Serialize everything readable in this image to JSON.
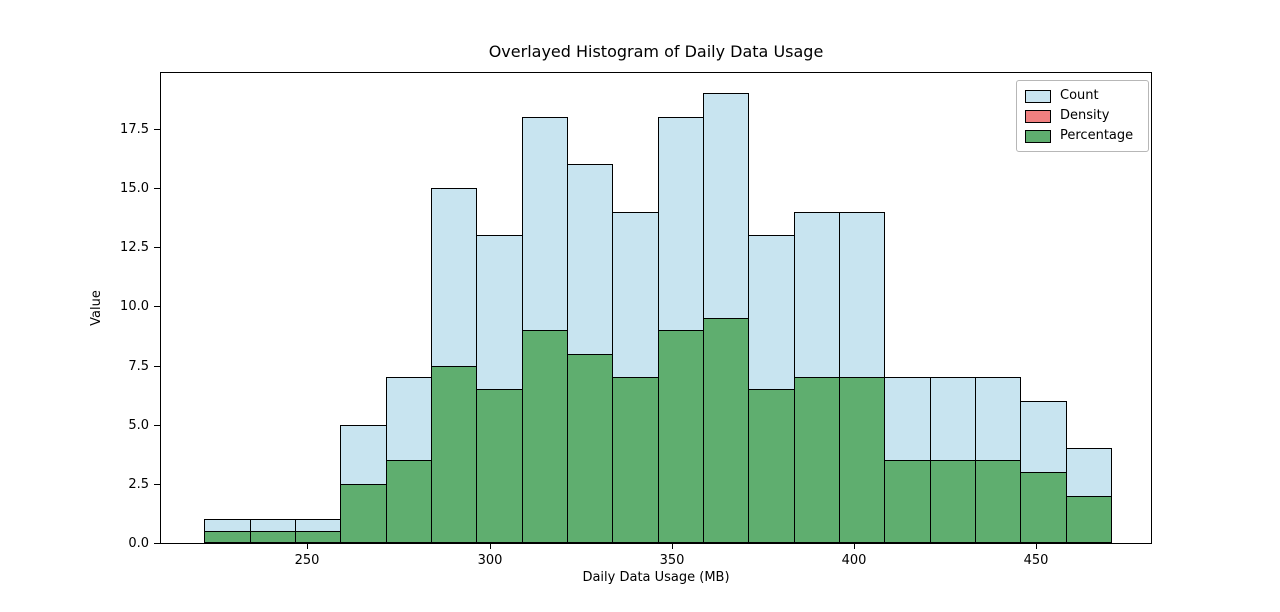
{
  "chart_data": {
    "type": "bar",
    "subtype": "overlaid-histogram",
    "title": "Overlayed Histogram of Daily Data Usage",
    "xlabel": "Daily Data Usage (MB)",
    "ylabel": "Value",
    "x_ticks": [
      250,
      300,
      350,
      400,
      450
    ],
    "y_ticks": [
      0.0,
      2.5,
      5.0,
      7.5,
      10.0,
      12.5,
      15.0,
      17.5
    ],
    "xlim": [
      209.6,
      481.7
    ],
    "ylim": [
      0,
      19.95
    ],
    "grid": false,
    "legend_position": "upper right",
    "bin_edges": [
      221.5,
      233.9,
      246.4,
      258.8,
      271.2,
      283.7,
      296.1,
      308.5,
      321.0,
      333.4,
      345.8,
      358.3,
      370.7,
      383.1,
      395.6,
      408.0,
      420.4,
      432.9,
      445.3,
      457.7,
      470.2
    ],
    "series": [
      {
        "name": "Count",
        "color": "#c8e4f0",
        "values": [
          1,
          1,
          1,
          5,
          7,
          15,
          13,
          18,
          16,
          14,
          18,
          19,
          13,
          14,
          14,
          7,
          7,
          7,
          6,
          4
        ]
      },
      {
        "name": "Density",
        "color": "#f08080",
        "values": [
          0.0004,
          0.0004,
          0.0004,
          0.002,
          0.0028,
          0.006,
          0.0052,
          0.0072,
          0.0064,
          0.0056,
          0.0072,
          0.0076,
          0.0052,
          0.0056,
          0.0056,
          0.0028,
          0.0028,
          0.0028,
          0.0024,
          0.0016
        ]
      },
      {
        "name": "Percentage",
        "color": "#5fae6f",
        "values": [
          0.5,
          0.5,
          0.5,
          2.5,
          3.5,
          7.5,
          6.5,
          9.0,
          8.0,
          7.0,
          9.0,
          9.5,
          6.5,
          7.0,
          7.0,
          3.5,
          3.5,
          3.5,
          3.0,
          2.0
        ]
      }
    ]
  }
}
